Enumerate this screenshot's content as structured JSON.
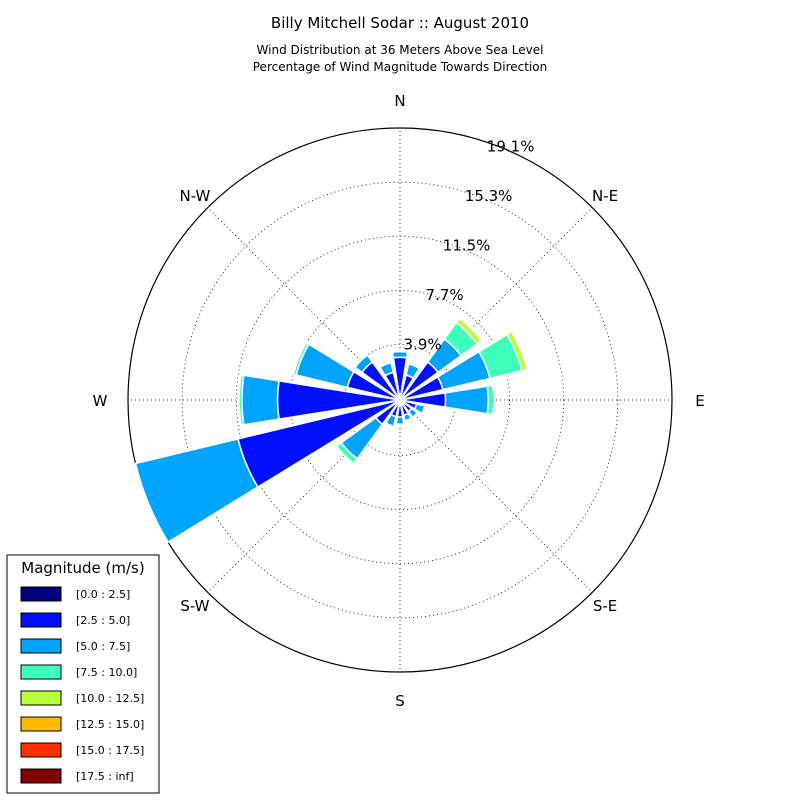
{
  "chart_data": {
    "type": "windrose",
    "title": "Billy Mitchell Sodar :: August 2010",
    "subtitle_lines": [
      "Wind Distribution at 36 Meters Above Sea Level",
      "Percentage of Wind Magnitude Towards Direction"
    ],
    "direction_labels": [
      "N",
      "N-E",
      "E",
      "S-E",
      "S",
      "S-W",
      "W",
      "N-W"
    ],
    "radial_ticks": [
      3.9,
      7.7,
      11.5,
      15.3,
      19.1
    ],
    "radial_tick_labels": [
      "3.9%",
      "7.7%",
      "11.5%",
      "15.3%",
      "19.1%"
    ],
    "rmax": 19.1,
    "grid": true,
    "legend_position": "bottom-left",
    "legend_title": "Magnitude (m/s)",
    "bins": [
      {
        "label": "[0.0 : 2.5]",
        "color": "#000080"
      },
      {
        "label": "[2.5 : 5.0]",
        "color": "#0010ff"
      },
      {
        "label": "[5.0 : 7.5]",
        "color": "#00a4ff"
      },
      {
        "label": "[7.5 : 10.0]",
        "color": "#3dffb9"
      },
      {
        "label": "[10.0 : 12.5]",
        "color": "#b9ff3d"
      },
      {
        "label": "[12.5 : 15.0]",
        "color": "#ffb900"
      },
      {
        "label": "[15.0 : 17.5]",
        "color": "#ff3000"
      },
      {
        "label": "[17.5 : inf]",
        "color": "#800000"
      }
    ],
    "directions_deg": [
      0,
      22.5,
      45,
      67.5,
      90,
      112.5,
      135,
      157.5,
      180,
      202.5,
      225,
      247.5,
      270,
      292.5,
      315,
      337.5
    ],
    "cumulative_percent_by_direction": [
      [
        0.2,
        3.0,
        3.4,
        3.4,
        3.4,
        3.4,
        3.4,
        3.4
      ],
      [
        0.2,
        1.8,
        2.6,
        2.6,
        2.6,
        2.6,
        2.6,
        2.6
      ],
      [
        0.3,
        3.3,
        5.3,
        6.7,
        7.1,
        7.1,
        7.1,
        7.1
      ],
      [
        0.3,
        3.1,
        6.5,
        8.8,
        9.2,
        9.2,
        9.2,
        9.2
      ],
      [
        0.3,
        3.2,
        6.2,
        6.6,
        6.6,
        6.6,
        6.6,
        6.6
      ],
      [
        0.2,
        1.2,
        1.8,
        1.8,
        1.8,
        1.8,
        1.8,
        1.8
      ],
      [
        0.2,
        1.0,
        1.5,
        1.5,
        1.5,
        1.5,
        1.5,
        1.5
      ],
      [
        0.2,
        1.1,
        1.5,
        1.5,
        1.5,
        1.5,
        1.5,
        1.5
      ],
      [
        0.2,
        1.2,
        1.7,
        1.7,
        1.7,
        1.7,
        1.7,
        1.7
      ],
      [
        0.2,
        1.2,
        1.9,
        1.9,
        1.9,
        1.9,
        1.9,
        1.9
      ],
      [
        0.2,
        2.1,
        5.1,
        5.5,
        5.5,
        5.5,
        5.5,
        5.5
      ],
      [
        0.3,
        11.7,
        19.1,
        19.1,
        19.1,
        19.1,
        19.1,
        19.1
      ],
      [
        0.3,
        8.6,
        11.1,
        11.3,
        11.3,
        11.3,
        11.3,
        11.3
      ],
      [
        0.3,
        3.8,
        7.5,
        7.7,
        7.7,
        7.7,
        7.7,
        7.7
      ],
      [
        0.3,
        3.3,
        3.9,
        3.9,
        3.9,
        3.9,
        3.9,
        3.9
      ],
      [
        0.3,
        2.0,
        2.7,
        2.7,
        2.7,
        2.7,
        2.7,
        2.7
      ]
    ]
  }
}
